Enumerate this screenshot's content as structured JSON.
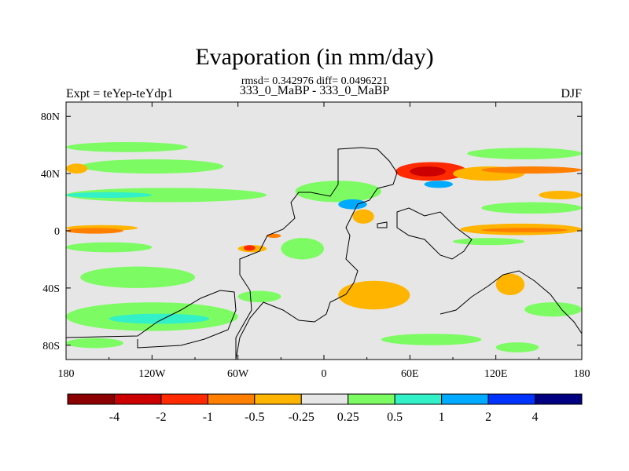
{
  "chart_data": {
    "type": "heatmap",
    "title": "Evaporation (in mm/day)",
    "stats_line": "rmsd= 0.342976 diff= 0.0496221",
    "subtitle": "333_0_MaBP - 333_0_MaBP",
    "left_string": "Expt = teYep-teYdp1",
    "right_string": "DJF",
    "x_range": [
      -180,
      180
    ],
    "y_range": [
      -90,
      90
    ],
    "x_ticks": [
      {
        "value": -180,
        "label": "180"
      },
      {
        "value": -120,
        "label": "120W"
      },
      {
        "value": -60,
        "label": "60W"
      },
      {
        "value": 0,
        "label": "0"
      },
      {
        "value": 60,
        "label": "60E"
      },
      {
        "value": 120,
        "label": "120E"
      },
      {
        "value": 180,
        "label": "180"
      }
    ],
    "y_ticks": [
      {
        "value": 80,
        "label": "80N"
      },
      {
        "value": 40,
        "label": "40N"
      },
      {
        "value": 0,
        "label": "0"
      },
      {
        "value": -40,
        "label": "40S"
      },
      {
        "value": -80,
        "label": "80S"
      }
    ],
    "levels": [
      "-4",
      "-2",
      "-1",
      "-0.5",
      "-0.25",
      "0.25",
      "0.5",
      "1",
      "2",
      "4"
    ],
    "colors": [
      "#8b0000",
      "#cc0000",
      "#ff2a00",
      "#ff7f00",
      "#ffb400",
      "#e6e6e6",
      "#7cfc62",
      "#32f0c8",
      "#00aaff",
      "#0033ff",
      "#000080"
    ],
    "regions": [
      {
        "class": 6,
        "lon": [
          -180,
          -95
        ],
        "lat": [
          55,
          62
        ]
      },
      {
        "class": 6,
        "lon": [
          -170,
          -70
        ],
        "lat": [
          40,
          50
        ]
      },
      {
        "class": 6,
        "lon": [
          -180,
          -40
        ],
        "lat": [
          20,
          30
        ]
      },
      {
        "class": 7,
        "lon": [
          -180,
          -120
        ],
        "lat": [
          23,
          27
        ]
      },
      {
        "class": 4,
        "lon": [
          -180,
          -165
        ],
        "lat": [
          40,
          47
        ]
      },
      {
        "class": 4,
        "lon": [
          -180,
          -130
        ],
        "lat": [
          0,
          4
        ]
      },
      {
        "class": 3,
        "lon": [
          -180,
          -140
        ],
        "lat": [
          -2,
          2
        ]
      },
      {
        "class": 6,
        "lon": [
          -180,
          -120
        ],
        "lat": [
          -15,
          -8
        ]
      },
      {
        "class": 6,
        "lon": [
          -170,
          -90
        ],
        "lat": [
          -40,
          -25
        ]
      },
      {
        "class": 6,
        "lon": [
          -180,
          -60
        ],
        "lat": [
          -70,
          -50
        ]
      },
      {
        "class": 7,
        "lon": [
          -150,
          -80
        ],
        "lat": [
          -65,
          -58
        ]
      },
      {
        "class": 6,
        "lon": [
          -60,
          -30
        ],
        "lat": [
          -50,
          -42
        ]
      },
      {
        "class": 6,
        "lon": [
          -180,
          -140
        ],
        "lat": [
          -82,
          -75
        ]
      },
      {
        "class": 4,
        "lon": [
          -60,
          -40
        ],
        "lat": [
          -15,
          -10
        ]
      },
      {
        "class": 2,
        "lon": [
          -56,
          -48
        ],
        "lat": [
          -14,
          -10
        ]
      },
      {
        "class": 3,
        "lon": [
          -40,
          -30
        ],
        "lat": [
          -5,
          -2
        ]
      },
      {
        "class": 6,
        "lon": [
          -30,
          0
        ],
        "lat": [
          -20,
          -5
        ]
      },
      {
        "class": 6,
        "lon": [
          -20,
          40
        ],
        "lat": [
          20,
          35
        ]
      },
      {
        "class": 8,
        "lon": [
          10,
          30
        ],
        "lat": [
          15,
          22
        ]
      },
      {
        "class": 4,
        "lon": [
          20,
          35
        ],
        "lat": [
          5,
          15
        ]
      },
      {
        "class": 2,
        "lon": [
          50,
          100
        ],
        "lat": [
          35,
          48
        ]
      },
      {
        "class": 1,
        "lon": [
          60,
          85
        ],
        "lat": [
          38,
          45
        ]
      },
      {
        "class": 8,
        "lon": [
          70,
          90
        ],
        "lat": [
          30,
          35
        ]
      },
      {
        "class": 4,
        "lon": [
          90,
          140
        ],
        "lat": [
          35,
          45
        ]
      },
      {
        "class": 3,
        "lon": [
          110,
          180
        ],
        "lat": [
          40,
          45
        ]
      },
      {
        "class": 6,
        "lon": [
          100,
          180
        ],
        "lat": [
          50,
          58
        ]
      },
      {
        "class": 6,
        "lon": [
          110,
          180
        ],
        "lat": [
          12,
          20
        ]
      },
      {
        "class": 4,
        "lon": [
          150,
          180
        ],
        "lat": [
          22,
          28
        ]
      },
      {
        "class": 4,
        "lon": [
          95,
          180
        ],
        "lat": [
          -3,
          5
        ]
      },
      {
        "class": 3,
        "lon": [
          110,
          170
        ],
        "lat": [
          -1,
          2
        ]
      },
      {
        "class": 6,
        "lon": [
          90,
          140
        ],
        "lat": [
          -10,
          -5
        ]
      },
      {
        "class": 4,
        "lon": [
          10,
          60
        ],
        "lat": [
          -55,
          -35
        ]
      },
      {
        "class": 4,
        "lon": [
          120,
          140
        ],
        "lat": [
          -45,
          -30
        ]
      },
      {
        "class": 6,
        "lon": [
          140,
          180
        ],
        "lat": [
          -60,
          -50
        ]
      },
      {
        "class": 6,
        "lon": [
          40,
          110
        ],
        "lat": [
          -80,
          -72
        ]
      },
      {
        "class": 6,
        "lon": [
          120,
          150
        ],
        "lat": [
          -85,
          -78
        ]
      }
    ]
  }
}
